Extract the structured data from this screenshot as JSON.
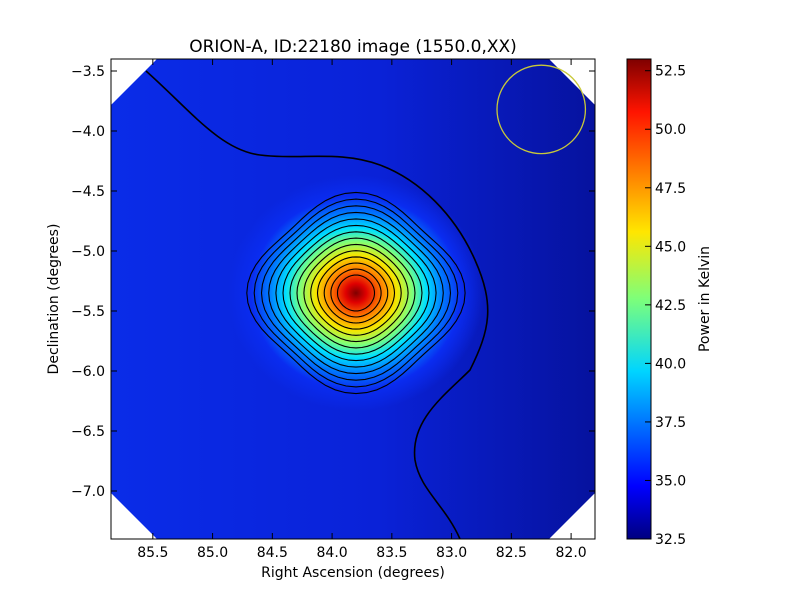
{
  "chart_data": {
    "type": "heatmap",
    "title": "ORION-A, ID:22180 image (1550.0,XX)",
    "xlabel": "Right Ascension (degrees)",
    "ylabel": "Declination (degrees)",
    "xlim": [
      85.85,
      81.8
    ],
    "ylim": [
      -7.4,
      -3.4
    ],
    "x_ticks": [
      85.5,
      85.0,
      84.5,
      84.0,
      83.5,
      83.0,
      82.5,
      82.0
    ],
    "x_tick_labels": [
      "85.5",
      "85.0",
      "84.5",
      "84.0",
      "83.5",
      "83.0",
      "82.5",
      "82.0"
    ],
    "y_ticks": [
      -3.5,
      -4.0,
      -4.5,
      -5.0,
      -5.5,
      -6.0,
      -6.5,
      -7.0
    ],
    "y_tick_labels": [
      "−3.5",
      "−4.0",
      "−4.5",
      "−5.0",
      "−5.5",
      "−6.0",
      "−6.5",
      "−7.0"
    ],
    "colormap": "jet",
    "colorbar": {
      "label": "Power in Kelvin",
      "range": [
        32.5,
        53.0
      ],
      "ticks": [
        32.5,
        35.0,
        37.5,
        40.0,
        42.5,
        45.0,
        47.5,
        50.0,
        52.5
      ],
      "tick_labels": [
        "32.5",
        "35.0",
        "37.5",
        "40.0",
        "42.5",
        "45.0",
        "47.5",
        "50.0",
        "52.5"
      ]
    },
    "source": {
      "name": "ORION-A",
      "ra_deg": 83.8,
      "dec_deg": -5.35,
      "peak_kelvin": 53.0,
      "background_kelvin": 34.0
    },
    "contours_count": 14,
    "beam_circle": {
      "ra_deg": 82.25,
      "dec_deg": -3.82,
      "radius_deg": 0.37,
      "color": "#c8c83a"
    }
  }
}
